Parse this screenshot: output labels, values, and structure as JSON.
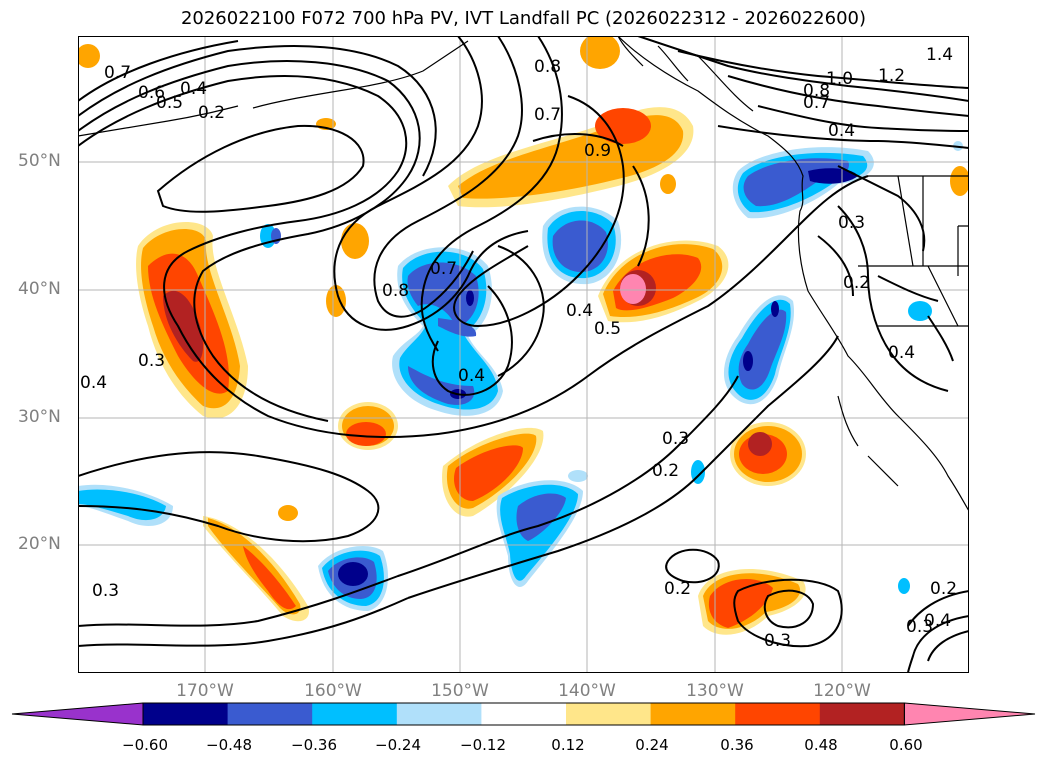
{
  "title": "2026022100 F072 700 hPa PV, IVT Landfall PC (2026022312 - 2026022600)",
  "lat_labels": [
    "50°N",
    "40°N",
    "30°N",
    "20°N"
  ],
  "lon_labels": [
    "170°W",
    "160°W",
    "150°W",
    "140°W",
    "130°W",
    "120°W"
  ],
  "colorbar": {
    "ticks": [
      "−0.60",
      "−0.48",
      "−0.36",
      "−0.24",
      "−0.12",
      "0.12",
      "0.24",
      "0.36",
      "0.48",
      "0.60"
    ],
    "colors": [
      "#9932cc",
      "#00008b",
      "#3a5bd0",
      "#00bfff",
      "#b0e0fa",
      "#ffffff",
      "#ffe68a",
      "#ffa500",
      "#ff4500",
      "#b22222",
      "#ff85b0"
    ]
  },
  "contour_labels": [
    "0.7",
    "0.6",
    "0.5",
    "0.4",
    "0.2",
    "0.8",
    "0.7",
    "0.9",
    "1.0",
    "1.2",
    "1.4",
    "0.8",
    "0.7",
    "0.4",
    "0.3",
    "0.2",
    "0.4",
    "0.8",
    "0.7",
    "0.4",
    "0.4",
    "0.5",
    "0.3",
    "0.4",
    "0.3",
    "0.2",
    "0.2",
    "0.3",
    "0.2",
    "0.3",
    "0.4",
    "0.3"
  ]
}
